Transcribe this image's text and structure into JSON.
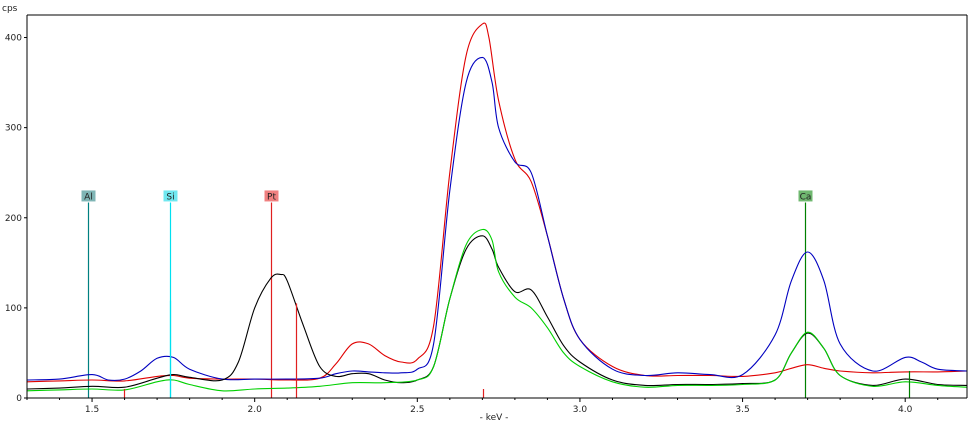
{
  "chart_data": {
    "type": "line",
    "title": "",
    "xlabel": "- keV -",
    "ylabel": "cps",
    "xlim": [
      1.3,
      4.19
    ],
    "ylim": [
      0,
      425
    ],
    "x_ticks": [
      {
        "value": 1.5,
        "label": "1.5"
      },
      {
        "value": 2.0,
        "label": "2.0"
      },
      {
        "value": 2.5,
        "label": "2.5"
      },
      {
        "value": 3.0,
        "label": "3.0"
      },
      {
        "value": 3.5,
        "label": "3.5"
      },
      {
        "value": 4.0,
        "label": "4.0"
      }
    ],
    "y_ticks": [
      {
        "value": 0,
        "label": "0"
      },
      {
        "value": 100,
        "label": "100"
      },
      {
        "value": 200,
        "label": "200"
      },
      {
        "value": 300,
        "label": "300"
      },
      {
        "value": 400,
        "label": "400"
      }
    ],
    "grid": false,
    "legend": "none",
    "element_markers": [
      {
        "label": "Al",
        "energy": 1.487,
        "line_top": 217,
        "color": "#008080",
        "label_bg": "#7fb5b5"
      },
      {
        "label": "Si",
        "energy": 1.74,
        "line_top": 217,
        "color": "#00e0f0",
        "label_bg": "#70e8f0"
      },
      {
        "label": "Pt",
        "energy": 2.05,
        "line_top": 217,
        "color": "#e02020",
        "label_bg": "#f08080"
      },
      {
        "label": "Ca",
        "energy": 3.691,
        "line_top": 217,
        "color": "#008000",
        "label_bg": "#70b870"
      }
    ],
    "minor_lines": [
      {
        "energy": 1.74,
        "value": 108,
        "color": "#00e0f0"
      },
      {
        "energy": 1.597,
        "value": 10,
        "color": "#e02020"
      },
      {
        "energy": 2.127,
        "value": 105,
        "color": "#e02020"
      },
      {
        "energy": 2.702,
        "value": 10,
        "color": "#e02020"
      },
      {
        "energy": 4.012,
        "value": 30,
        "color": "#008000"
      }
    ],
    "series": [
      {
        "color": "#e00000",
        "x": [
          1.3,
          1.4,
          1.5,
          1.6,
          1.7,
          1.75,
          1.8,
          1.9,
          2.0,
          2.1,
          2.2,
          2.25,
          2.3,
          2.35,
          2.4,
          2.45,
          2.5,
          2.55,
          2.6,
          2.65,
          2.7,
          2.72,
          2.75,
          2.8,
          2.85,
          2.9,
          2.95,
          3.0,
          3.1,
          3.2,
          3.3,
          3.4,
          3.5,
          3.6,
          3.65,
          3.7,
          3.75,
          3.8,
          3.9,
          4.0,
          4.1,
          4.19
        ],
        "y": [
          18,
          19,
          20,
          19,
          24,
          25,
          22,
          21,
          21,
          20,
          22,
          38,
          60,
          60,
          47,
          40,
          43,
          80,
          250,
          380,
          415,
          400,
          330,
          265,
          240,
          180,
          110,
          65,
          35,
          25,
          25,
          25,
          24,
          28,
          33,
          37,
          33,
          30,
          28,
          29,
          29,
          30
        ]
      },
      {
        "color": "#0000c0",
        "x": [
          1.3,
          1.4,
          1.5,
          1.55,
          1.6,
          1.65,
          1.7,
          1.75,
          1.8,
          1.9,
          2.0,
          2.1,
          2.2,
          2.25,
          2.3,
          2.35,
          2.4,
          2.45,
          2.5,
          2.55,
          2.6,
          2.65,
          2.7,
          2.73,
          2.75,
          2.8,
          2.85,
          2.9,
          2.95,
          3.0,
          3.1,
          3.2,
          3.3,
          3.4,
          3.5,
          3.6,
          3.65,
          3.7,
          3.75,
          3.8,
          3.9,
          4.0,
          4.05,
          4.1,
          4.19
        ],
        "y": [
          20,
          21,
          26,
          20,
          21,
          30,
          44,
          45,
          32,
          21,
          21,
          21,
          22,
          27,
          30,
          29,
          28,
          28,
          32,
          60,
          230,
          350,
          378,
          350,
          300,
          262,
          250,
          180,
          110,
          65,
          32,
          25,
          28,
          26,
          26,
          70,
          130,
          162,
          130,
          60,
          30,
          45,
          40,
          32,
          30
        ]
      },
      {
        "color": "#000000",
        "x": [
          1.3,
          1.4,
          1.5,
          1.6,
          1.7,
          1.75,
          1.8,
          1.9,
          1.95,
          2.0,
          2.05,
          2.08,
          2.1,
          2.15,
          2.2,
          2.25,
          2.3,
          2.35,
          2.4,
          2.45,
          2.5,
          2.55,
          2.6,
          2.65,
          2.7,
          2.73,
          2.75,
          2.8,
          2.85,
          2.9,
          2.95,
          3.0,
          3.1,
          3.2,
          3.3,
          3.4,
          3.5,
          3.6,
          3.65,
          3.7,
          3.75,
          3.8,
          3.9,
          4.0,
          4.1,
          4.19
        ],
        "y": [
          10,
          11,
          13,
          12,
          22,
          26,
          23,
          20,
          40,
          100,
          133,
          137,
          130,
          80,
          35,
          24,
          27,
          27,
          20,
          17,
          20,
          35,
          110,
          165,
          180,
          165,
          145,
          118,
          120,
          90,
          58,
          40,
          20,
          14,
          15,
          15,
          16,
          20,
          50,
          72,
          55,
          25,
          14,
          21,
          15,
          14
        ]
      },
      {
        "color": "#00d000",
        "x": [
          1.3,
          1.4,
          1.5,
          1.6,
          1.7,
          1.75,
          1.8,
          1.9,
          2.0,
          2.1,
          2.2,
          2.3,
          2.4,
          2.5,
          2.55,
          2.6,
          2.65,
          2.7,
          2.73,
          2.75,
          2.8,
          2.85,
          2.9,
          2.95,
          3.0,
          3.1,
          3.2,
          3.3,
          3.4,
          3.5,
          3.6,
          3.65,
          3.7,
          3.75,
          3.8,
          3.9,
          4.0,
          4.1,
          4.19
        ],
        "y": [
          8,
          9,
          10,
          9,
          18,
          20,
          15,
          8,
          10,
          11,
          13,
          17,
          17,
          20,
          35,
          110,
          170,
          187,
          175,
          140,
          112,
          100,
          78,
          50,
          35,
          18,
          12,
          14,
          14,
          15,
          20,
          50,
          73,
          55,
          25,
          13,
          18,
          14,
          12
        ]
      }
    ]
  }
}
